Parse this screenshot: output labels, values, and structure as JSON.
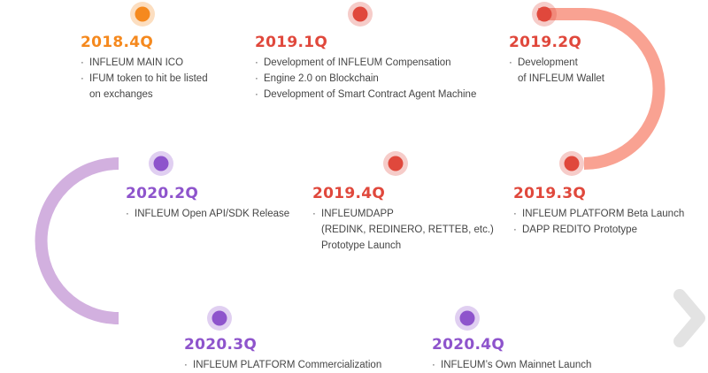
{
  "colors": {
    "orange": "#f5891e",
    "red": "#e0483c",
    "purple": "#8e54cc",
    "track_start": "#e3e3e3",
    "track_orange": "#fbd7a6",
    "track_salmon": "#f9a292",
    "track_pink": "#e6b2c7",
    "track_purple": "#d2b0df",
    "arrow_end": "#e3e3e3",
    "text": "#454545"
  },
  "milestones": [
    {
      "quarter": "2018.4Q",
      "color": "#f5891e",
      "items": [
        {
          "bullet": true,
          "text": "INFLEUM MAIN ICO"
        },
        {
          "bullet": true,
          "text": "IFUM token to hit be listed"
        },
        {
          "bullet": false,
          "text": "on exchanges"
        }
      ]
    },
    {
      "quarter": "2019.1Q",
      "color": "#e0483c",
      "items": [
        {
          "bullet": true,
          "text": "Development of INFLEUM Compensation"
        },
        {
          "bullet": true,
          "text": "Engine 2.0 on Blockchain"
        },
        {
          "bullet": true,
          "text": "Development of Smart Contract Agent Machine"
        }
      ]
    },
    {
      "quarter": "2019.2Q",
      "color": "#e0483c",
      "items": [
        {
          "bullet": true,
          "text": "Development"
        },
        {
          "bullet": false,
          "text": "of INFLEUM Wallet"
        }
      ]
    },
    {
      "quarter": "2019.3Q",
      "color": "#e0483c",
      "items": [
        {
          "bullet": true,
          "text": "INFLEUM PLATFORM Beta Launch"
        },
        {
          "bullet": true,
          "text": "DAPP REDITO Prototype"
        }
      ]
    },
    {
      "quarter": "2019.4Q",
      "color": "#e0483c",
      "items": [
        {
          "bullet": true,
          "text": "INFLEUMDAPP"
        },
        {
          "bullet": false,
          "text": "(REDINK, REDINERO, RETTEB, etc.)"
        },
        {
          "bullet": false,
          "text": "Prototype Launch"
        }
      ]
    },
    {
      "quarter": "2020.2Q",
      "color": "#8e54cc",
      "items": [
        {
          "bullet": true,
          "text": "INFLEUM Open API/SDK Release"
        }
      ]
    },
    {
      "quarter": "2020.3Q",
      "color": "#8e54cc",
      "items": [
        {
          "bullet": true,
          "text": "INFLEUM PLATFORM Commercialization"
        }
      ]
    },
    {
      "quarter": "2020.4Q",
      "color": "#8e54cc",
      "items": [
        {
          "bullet": true,
          "text": "INFLEUM’s Own Mainnet Launch"
        }
      ]
    }
  ]
}
